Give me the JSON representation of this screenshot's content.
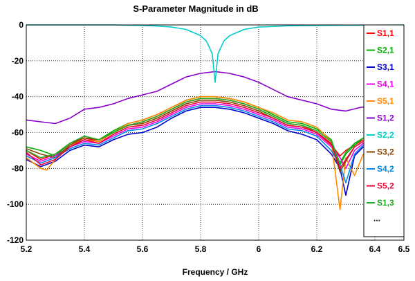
{
  "chart_data": {
    "type": "line",
    "title": "S-Parameter Magnitude in dB",
    "xlabel": "Frequency / GHz",
    "ylabel": "",
    "xlim": [
      5.2,
      6.5
    ],
    "ylim": [
      -120,
      0
    ],
    "xticks": [
      "5.2",
      "5.4",
      "5.6",
      "5.8",
      "6",
      "6.2",
      "6.4",
      "6.5"
    ],
    "yticks": [
      "0",
      "-20",
      "-40",
      "-60",
      "-80",
      "-100",
      "-120"
    ],
    "grid": true,
    "legend_position": "right",
    "legend_more": "...",
    "series": [
      {
        "name": "S1,1",
        "color": "#ff0000",
        "x": [
          5.2,
          5.25,
          5.3,
          5.35,
          5.4,
          5.45,
          5.5,
          5.55,
          5.6,
          5.65,
          5.7,
          5.75,
          5.8,
          5.85,
          5.9,
          5.95,
          6.0,
          6.05,
          6.1,
          6.15,
          6.2,
          6.25,
          6.28,
          6.3,
          6.33,
          6.36
        ],
        "y": [
          -70,
          -75,
          -72,
          -66,
          -63,
          -65,
          -60,
          -56,
          -54,
          -51,
          -47,
          -43,
          -41,
          -41,
          -42,
          -44,
          -47,
          -51,
          -55,
          -56,
          -60,
          -67,
          -73,
          -70,
          -67,
          -64
        ]
      },
      {
        "name": "S2,1",
        "color": "#00b000",
        "x": [
          5.2,
          5.25,
          5.3,
          5.35,
          5.4,
          5.45,
          5.5,
          5.55,
          5.6,
          5.65,
          5.7,
          5.75,
          5.8,
          5.85,
          5.9,
          5.95,
          6.0,
          6.05,
          6.1,
          6.15,
          6.2,
          6.25,
          6.28,
          6.3,
          6.33,
          6.36
        ],
        "y": [
          -68,
          -70,
          -73,
          -66,
          -62,
          -64,
          -59,
          -55,
          -53,
          -50,
          -46,
          -42,
          -40,
          -40,
          -41,
          -43,
          -46,
          -50,
          -54,
          -55,
          -58,
          -64,
          -78,
          -72,
          -67,
          -63
        ]
      },
      {
        "name": "S3,1",
        "color": "#0000cc",
        "x": [
          5.2,
          5.25,
          5.3,
          5.35,
          5.4,
          5.45,
          5.5,
          5.55,
          5.6,
          5.65,
          5.7,
          5.75,
          5.8,
          5.85,
          5.9,
          5.95,
          6.0,
          6.05,
          6.1,
          6.15,
          6.2,
          6.25,
          6.28,
          6.3,
          6.33,
          6.36
        ],
        "y": [
          -75,
          -79,
          -76,
          -70,
          -67,
          -68,
          -64,
          -61,
          -60,
          -57,
          -52,
          -48,
          -46,
          -46,
          -47,
          -49,
          -52,
          -55,
          -59,
          -61,
          -64,
          -72,
          -80,
          -95,
          -73,
          -68
        ]
      },
      {
        "name": "S4,1",
        "color": "#ee00ee",
        "x": [
          5.2,
          5.25,
          5.3,
          5.35,
          5.4,
          5.45,
          5.5,
          5.55,
          5.6,
          5.65,
          5.7,
          5.75,
          5.8,
          5.85,
          5.9,
          5.95,
          6.0,
          6.05,
          6.1,
          6.15,
          6.2,
          6.25,
          6.28,
          6.3,
          6.33,
          6.36
        ],
        "y": [
          -72,
          -76,
          -73,
          -68,
          -65,
          -66,
          -62,
          -58,
          -57,
          -54,
          -50,
          -46,
          -44,
          -44,
          -45,
          -47,
          -50,
          -53,
          -57,
          -58,
          -61,
          -68,
          -74,
          -80,
          -70,
          -66
        ]
      },
      {
        "name": "S5,1",
        "color": "#ff8800",
        "x": [
          5.2,
          5.25,
          5.27,
          5.3,
          5.35,
          5.4,
          5.45,
          5.5,
          5.55,
          5.6,
          5.65,
          5.7,
          5.75,
          5.8,
          5.85,
          5.9,
          5.95,
          6.0,
          6.05,
          6.1,
          6.15,
          6.2,
          6.25,
          6.28,
          6.29,
          6.3,
          6.33,
          6.36
        ],
        "y": [
          -74,
          -80,
          -81,
          -75,
          -67,
          -64,
          -65,
          -60,
          -55,
          -53,
          -50,
          -46,
          -42,
          -40,
          -40,
          -41,
          -43,
          -46,
          -49,
          -53,
          -54,
          -57,
          -65,
          -103,
          -88,
          -74,
          -84,
          -72
        ]
      },
      {
        "name": "S1,2",
        "color": "#8800cc",
        "x": [
          5.2,
          5.25,
          5.3,
          5.35,
          5.4,
          5.45,
          5.5,
          5.55,
          5.6,
          5.65,
          5.7,
          5.75,
          5.8,
          5.85,
          5.9,
          5.95,
          6.0,
          6.05,
          6.1,
          6.15,
          6.2,
          6.25,
          6.3,
          6.35,
          6.4,
          6.45
        ],
        "y": [
          -53,
          -54,
          -55,
          -52,
          -47,
          -46,
          -44,
          -41,
          -39,
          -37,
          -33,
          -29,
          -27,
          -26,
          -27,
          -29,
          -32,
          -36,
          -40,
          -42,
          -44,
          -47,
          -48,
          -46,
          -45,
          -46
        ]
      },
      {
        "name": "S2,2",
        "color": "#00cccc",
        "x": [
          5.2,
          5.3,
          5.4,
          5.5,
          5.6,
          5.65,
          5.7,
          5.75,
          5.8,
          5.82,
          5.84,
          5.85,
          5.86,
          5.88,
          5.9,
          5.95,
          6.0,
          6.1,
          6.2,
          6.3,
          6.4,
          6.5
        ],
        "y": [
          0,
          0,
          0,
          0,
          -0.3,
          -0.6,
          -1.2,
          -2.5,
          -6,
          -9,
          -16,
          -32,
          -16,
          -9,
          -6,
          -2.5,
          -1.2,
          -0.5,
          -0.3,
          -0.2,
          -0.1,
          0
        ]
      },
      {
        "name": "S3,2",
        "color": "#884400",
        "x": [
          5.2,
          5.25,
          5.3,
          5.35,
          5.4,
          5.45,
          5.5,
          5.55,
          5.6,
          5.65,
          5.7,
          5.75,
          5.8,
          5.85,
          5.9,
          5.95,
          6.0,
          6.05,
          6.1,
          6.15,
          6.2,
          6.25,
          6.28,
          6.3,
          6.33,
          6.36
        ],
        "y": [
          -69,
          -72,
          -74,
          -67,
          -63,
          -64,
          -60,
          -56,
          -55,
          -52,
          -48,
          -44,
          -42,
          -42,
          -43,
          -45,
          -48,
          -52,
          -56,
          -57,
          -60,
          -66,
          -82,
          -76,
          -68,
          -65
        ]
      },
      {
        "name": "S4,2",
        "color": "#0088ee",
        "x": [
          5.2,
          5.25,
          5.3,
          5.35,
          5.4,
          5.45,
          5.5,
          5.55,
          5.6,
          5.65,
          5.7,
          5.75,
          5.8,
          5.85,
          5.9,
          5.95,
          6.0,
          6.05,
          6.1,
          6.15,
          6.2,
          6.25,
          6.28,
          6.3,
          6.33,
          6.36
        ],
        "y": [
          -73,
          -77,
          -74,
          -69,
          -66,
          -67,
          -63,
          -59,
          -58,
          -55,
          -51,
          -47,
          -45,
          -45,
          -46,
          -48,
          -51,
          -54,
          -58,
          -59,
          -62,
          -70,
          -78,
          -88,
          -72,
          -67
        ]
      },
      {
        "name": "S5,2",
        "color": "#ee0033",
        "x": [
          5.2,
          5.25,
          5.3,
          5.35,
          5.4,
          5.45,
          5.5,
          5.55,
          5.6,
          5.65,
          5.7,
          5.75,
          5.8,
          5.85,
          5.9,
          5.95,
          6.0,
          6.05,
          6.1,
          6.15,
          6.2,
          6.25,
          6.28,
          6.3,
          6.33,
          6.36
        ],
        "y": [
          -71,
          -78,
          -75,
          -68,
          -64,
          -66,
          -61,
          -57,
          -56,
          -53,
          -49,
          -45,
          -43,
          -43,
          -44,
          -46,
          -49,
          -52,
          -56,
          -57,
          -60,
          -66,
          -80,
          -75,
          -68,
          -65
        ]
      },
      {
        "name": "S1,3",
        "color": "#22aa22",
        "x": [
          5.2,
          5.25,
          5.3,
          5.35,
          5.4,
          5.45,
          5.5,
          5.55,
          5.6,
          5.65,
          5.7,
          5.75,
          5.8,
          5.85,
          5.9,
          5.95,
          6.0,
          6.05,
          6.1,
          6.15,
          6.2,
          6.25,
          6.28,
          6.3,
          6.33,
          6.36
        ],
        "y": [
          -70,
          -74,
          -72,
          -66,
          -62,
          -64,
          -60,
          -56,
          -54,
          -51,
          -47,
          -43,
          -41,
          -41,
          -42,
          -44,
          -47,
          -51,
          -55,
          -56,
          -59,
          -65,
          -77,
          -71,
          -66,
          -63
        ]
      }
    ]
  }
}
